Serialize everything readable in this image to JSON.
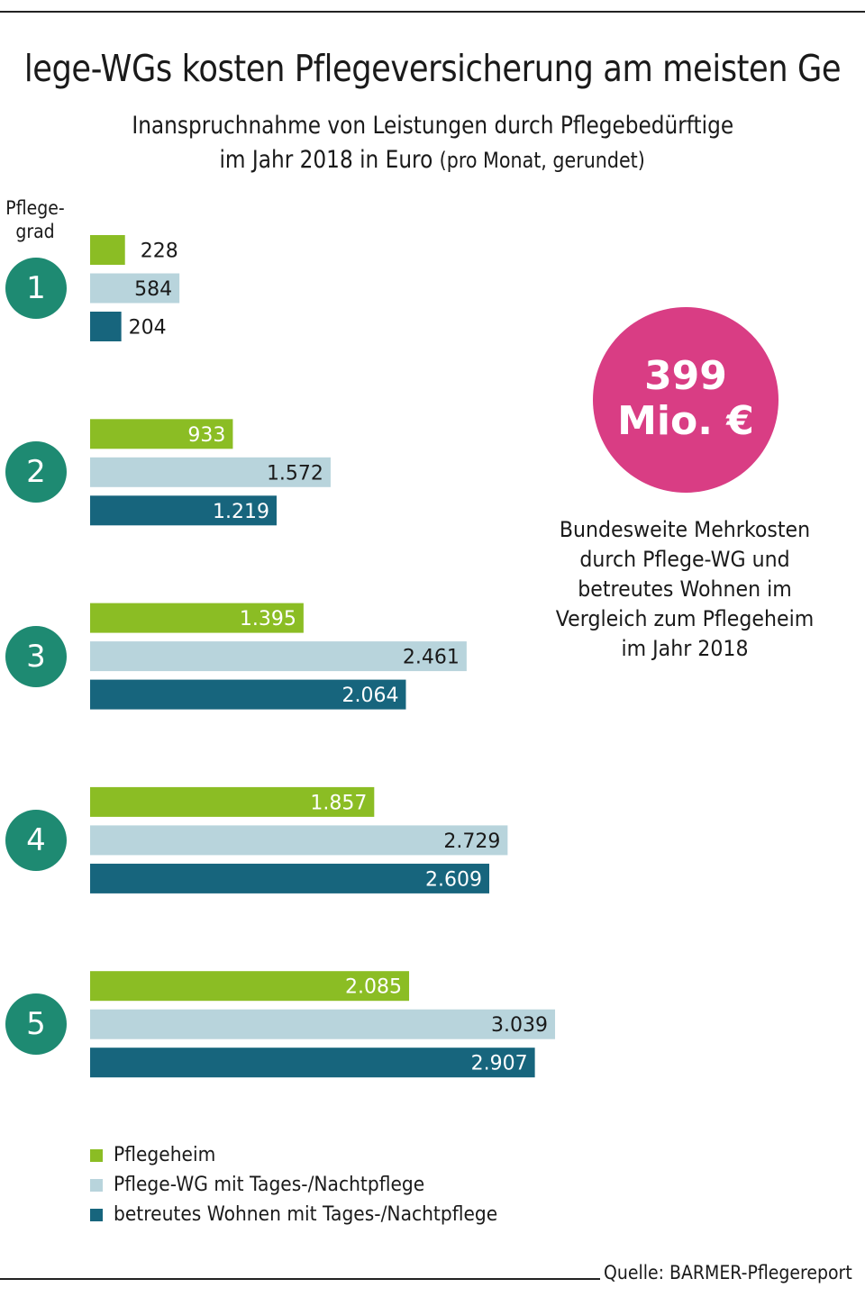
{
  "header": {
    "title": "lege-WGs kosten Pflegeversicherung am meisten Ge",
    "subtitle_line1": "Inanspruchnahme von Leistungen durch Pflegebedürftige",
    "subtitle_line2_main": "im Jahr 2018 in Euro",
    "subtitle_line2_note": "(pro Monat, gerundet)"
  },
  "grade_header": {
    "line1": "Pflege-",
    "line2": "grad"
  },
  "callout": {
    "value": "399",
    "unit": "Mio. €",
    "color": "#d93d84",
    "text_lines": [
      "Bundesweite Mehrkosten",
      "durch Pflege-WG und",
      "betreutes Wohnen im",
      "Vergleich zum Pflegeheim",
      "im Jahr 2018"
    ]
  },
  "source": "Quelle: BARMER-Pflegereport",
  "colors": {
    "grade_circle": "#1e8a72",
    "pflegeheim": "#8bbd24",
    "pflege_wg": "#b8d4dc",
    "betreutes_wohnen": "#17657d"
  },
  "chart_data": {
    "type": "bar",
    "orientation": "horizontal",
    "title": "Pflege-WGs kosten Pflegeversicherung am meisten Geld",
    "subtitle": "Inanspruchnahme von Leistungen durch Pflegebedürftige im Jahr 2018 in Euro (pro Monat, gerundet)",
    "category_axis_label": "Pflegegrad",
    "unit": "Euro pro Monat",
    "categories": [
      "1",
      "2",
      "3",
      "4",
      "5"
    ],
    "series": [
      {
        "name": "Pflegeheim",
        "color": "#8bbd24",
        "values": [
          228,
          933,
          1395,
          1857,
          2085
        ],
        "labels": [
          "228",
          "933",
          "1.395",
          "1.857",
          "2.085"
        ]
      },
      {
        "name": "Pflege-WG mit Tages-/Nachtpflege",
        "color": "#b8d4dc",
        "values": [
          584,
          1572,
          2461,
          2729,
          3039
        ],
        "labels": [
          "584",
          "1.572",
          "2.461",
          "2.729",
          "3.039"
        ]
      },
      {
        "name": "betreutes Wohnen mit Tages-/Nachtpflege",
        "color": "#17657d",
        "values": [
          204,
          1219,
          2064,
          2609,
          2907
        ],
        "labels": [
          "204",
          "1.219",
          "2.064",
          "2.609",
          "2.907"
        ]
      }
    ],
    "xlim": [
      0,
      3100
    ],
    "grid": false,
    "axes_visible": false,
    "legend_position": "bottom-left",
    "data_labels": true
  }
}
